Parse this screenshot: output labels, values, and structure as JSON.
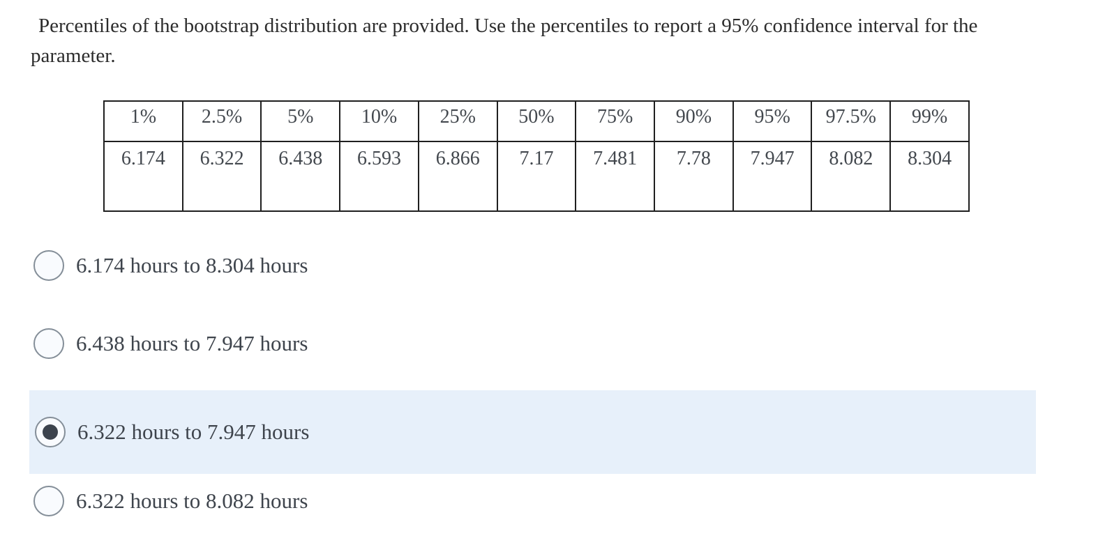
{
  "question": {
    "text": "Percentiles of the bootstrap distribution are provided. Use the percentiles to report a 95% confidence interval for the parameter."
  },
  "table": {
    "headers": [
      "1%",
      "2.5%",
      "5%",
      "10%",
      "25%",
      "50%",
      "75%",
      "90%",
      "95%",
      "97.5%",
      "99%"
    ],
    "values": [
      "6.174",
      "6.322",
      "6.438",
      "6.593",
      "6.866",
      "7.17",
      "7.481",
      "7.78",
      "7.947",
      "8.082",
      "8.304"
    ]
  },
  "options": [
    {
      "label": "6.174 hours to 8.304 hours",
      "selected": false
    },
    {
      "label": "6.438 hours to 7.947 hours",
      "selected": false
    },
    {
      "label": "6.322 hours to 7.947 hours",
      "selected": true
    },
    {
      "label": "6.322 hours to 8.082 hours",
      "selected": false
    }
  ],
  "colors": {
    "highlight": "#e7f0fa",
    "radio_border": "#848e98",
    "radio_dot": "#3c434d",
    "table_border": "#1f1f1f"
  }
}
